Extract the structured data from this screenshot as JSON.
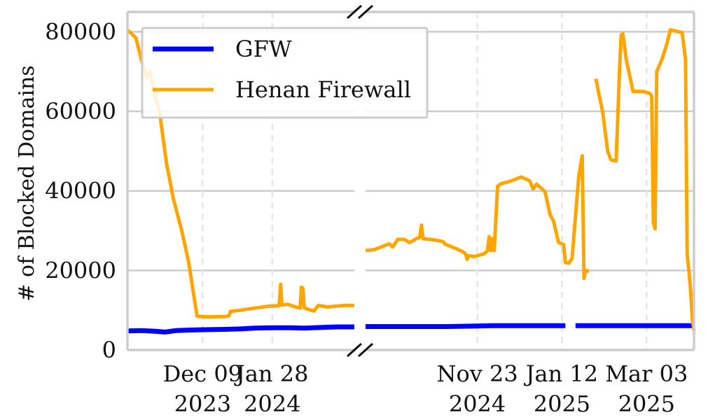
{
  "chart_data": {
    "type": "line",
    "ylabel": "# of Blocked Domains",
    "ylim": [
      0,
      85000
    ],
    "y_ticks": [
      0,
      20000,
      40000,
      60000,
      80000
    ],
    "y_tick_labels": [
      "0",
      "20000",
      "40000",
      "60000",
      "80000"
    ],
    "grid": "horizontal solid, vertical dashed at x ticks",
    "broken_x_axis": true,
    "legend": {
      "placement": "top-left",
      "entries": [
        "GFW",
        "Henan Firewall"
      ]
    },
    "colors": {
      "gfw": "#0000ff",
      "henan": "#ffa500",
      "grid": "#cccccc",
      "vgrid": "#e6e6e6",
      "axis": "#cccccc"
    },
    "panels": [
      {
        "xlim": [
          "2023-10-16",
          "2024-03-27"
        ],
        "x_ticks": [
          {
            "date": "2023-12-09",
            "label_line1": "Dec 09",
            "label_line2": "2023"
          },
          {
            "date": "2024-01-28",
            "label_line1": "Jan 28",
            "label_line2": "2024"
          }
        ]
      },
      {
        "xlim": [
          "2024-09-18",
          "2025-03-31"
        ],
        "x_ticks": [
          {
            "date": "2024-11-23",
            "label_line1": "Nov 23",
            "label_line2": "2024"
          },
          {
            "date": "2025-01-12",
            "label_line1": "Jan 12",
            "label_line2": "2025"
          },
          {
            "date": "2025-03-03",
            "label_line1": "Mar 03",
            "label_line2": "2025"
          }
        ]
      }
    ],
    "series": [
      {
        "name": "GFW",
        "color": "#0000ff",
        "segments": [
          [
            [
              "2023-10-16",
              4800
            ],
            [
              "2023-10-26",
              4900
            ],
            [
              "2023-11-05",
              4700
            ],
            [
              "2023-11-12",
              4500
            ],
            [
              "2023-11-20",
              4900
            ],
            [
              "2023-11-28",
              5000
            ],
            [
              "2023-12-10",
              5100
            ],
            [
              "2023-12-25",
              5200
            ],
            [
              "2024-01-05",
              5300
            ],
            [
              "2024-01-15",
              5500
            ],
            [
              "2024-01-28",
              5600
            ],
            [
              "2024-02-10",
              5600
            ],
            [
              "2024-02-20",
              5500
            ],
            [
              "2024-03-05",
              5700
            ],
            [
              "2024-03-15",
              5800
            ],
            [
              "2024-03-27",
              5800
            ]
          ],
          [
            [
              "2024-09-18",
              5900
            ],
            [
              "2024-10-01",
              5900
            ],
            [
              "2024-10-20",
              5900
            ],
            [
              "2024-11-05",
              5900
            ],
            [
              "2024-11-20",
              6000
            ],
            [
              "2024-12-01",
              6100
            ],
            [
              "2024-12-20",
              6100
            ],
            [
              "2025-01-05",
              6100
            ],
            [
              "2025-01-14",
              6100
            ]
          ],
          [
            [
              "2025-01-20",
              6100
            ],
            [
              "2025-02-01",
              6100
            ],
            [
              "2025-02-20",
              6100
            ],
            [
              "2025-03-10",
              6100
            ],
            [
              "2025-03-31",
              6100
            ]
          ]
        ]
      },
      {
        "name": "Henan Firewall",
        "color": "#ffa500",
        "segments": [
          [
            [
              "2023-10-16",
              80500
            ],
            [
              "2023-10-19",
              79500
            ],
            [
              "2023-10-22",
              78500
            ],
            [
              "2023-10-26",
              73000
            ],
            [
              "2023-10-30",
              68500
            ],
            [
              "2023-11-01",
              70000
            ],
            [
              "2023-11-04",
              65000
            ],
            [
              "2023-11-08",
              60000
            ],
            [
              "2023-11-13",
              47000
            ],
            [
              "2023-11-18",
              38000
            ],
            [
              "2023-11-24",
              30000
            ],
            [
              "2023-11-29",
              22000
            ],
            [
              "2023-12-03",
              13000
            ],
            [
              "2023-12-05",
              8500
            ],
            [
              "2023-12-12",
              8300
            ],
            [
              "2023-12-25",
              8400
            ],
            [
              "2023-12-28",
              8600
            ],
            [
              "2023-12-29",
              9700
            ],
            [
              "2024-01-05",
              10000
            ],
            [
              "2024-01-15",
              10500
            ],
            [
              "2024-01-25",
              11000
            ],
            [
              "2024-01-31",
              11100
            ],
            [
              "2024-02-02",
              11200
            ],
            [
              "2024-02-03",
              16500
            ],
            [
              "2024-02-04",
              11300
            ],
            [
              "2024-02-08",
              11500
            ],
            [
              "2024-02-14",
              10800
            ],
            [
              "2024-02-17",
              10500
            ],
            [
              "2024-02-18",
              15800
            ],
            [
              "2024-02-19",
              15500
            ],
            [
              "2024-02-20",
              10600
            ],
            [
              "2024-02-23",
              10200
            ],
            [
              "2024-02-27",
              9800
            ],
            [
              "2024-03-01",
              11200
            ],
            [
              "2024-03-08",
              10800
            ],
            [
              "2024-03-13",
              11000
            ],
            [
              "2024-03-20",
              11200
            ],
            [
              "2024-03-27",
              11200
            ]
          ],
          [
            [
              "2024-09-18",
              25000
            ],
            [
              "2024-09-23",
              25200
            ],
            [
              "2024-09-29",
              26200
            ],
            [
              "2024-10-02",
              26700
            ],
            [
              "2024-10-04",
              25900
            ],
            [
              "2024-10-07",
              27800
            ],
            [
              "2024-10-11",
              27800
            ],
            [
              "2024-10-14",
              27000
            ],
            [
              "2024-10-18",
              28000
            ],
            [
              "2024-10-20",
              28300
            ],
            [
              "2024-10-21",
              31400
            ],
            [
              "2024-10-22",
              28000
            ],
            [
              "2024-10-30",
              27600
            ],
            [
              "2024-11-03",
              27200
            ],
            [
              "2024-11-04",
              26600
            ],
            [
              "2024-11-11",
              25400
            ],
            [
              "2024-11-14",
              24800
            ],
            [
              "2024-11-16",
              24200
            ],
            [
              "2024-11-17",
              22800
            ],
            [
              "2024-11-18",
              23700
            ],
            [
              "2024-11-21",
              23500
            ],
            [
              "2024-11-23",
              23700
            ],
            [
              "2024-11-27",
              24200
            ],
            [
              "2024-11-29",
              25000
            ],
            [
              "2024-11-30",
              28500
            ],
            [
              "2024-12-01",
              25000
            ],
            [
              "2024-12-02",
              28000
            ],
            [
              "2024-12-03",
              25000
            ],
            [
              "2024-12-05",
              41200
            ],
            [
              "2024-12-07",
              41800
            ],
            [
              "2024-12-13",
              42500
            ],
            [
              "2024-12-16",
              43000
            ],
            [
              "2024-12-19",
              43500
            ],
            [
              "2024-12-24",
              42500
            ],
            [
              "2024-12-26",
              40500
            ],
            [
              "2024-12-28",
              41700
            ],
            [
              "2025-01-02",
              39800
            ],
            [
              "2025-01-05",
              34000
            ],
            [
              "2025-01-07",
              32500
            ],
            [
              "2025-01-10",
              27000
            ],
            [
              "2025-01-13",
              26500
            ],
            [
              "2025-01-14",
              22000
            ],
            [
              "2025-01-16",
              21800
            ],
            [
              "2025-01-18",
              23000
            ],
            [
              "2025-01-22",
              44000
            ],
            [
              "2025-01-24",
              48800
            ],
            [
              "2025-01-25",
              18000
            ],
            [
              "2025-01-26",
              20000
            ],
            [
              "2025-01-28",
              19800
            ]
          ],
          [
            [
              "2025-02-01",
              68200
            ],
            [
              "2025-02-03",
              64000
            ],
            [
              "2025-02-05",
              60000
            ],
            [
              "2025-02-08",
              50000
            ],
            [
              "2025-02-10",
              47800
            ],
            [
              "2025-02-13",
              47500
            ],
            [
              "2025-02-15",
              70000
            ],
            [
              "2025-02-16",
              79200
            ],
            [
              "2025-02-17",
              79500
            ],
            [
              "2025-02-19",
              73000
            ],
            [
              "2025-02-23",
              65000
            ],
            [
              "2025-03-01",
              65000
            ],
            [
              "2025-03-05",
              64500
            ],
            [
              "2025-03-06",
              63800
            ],
            [
              "2025-03-07",
              32000
            ],
            [
              "2025-03-08",
              30500
            ],
            [
              "2025-03-09",
              70000
            ],
            [
              "2025-03-12",
              73000
            ],
            [
              "2025-03-15",
              77000
            ],
            [
              "2025-03-17",
              80500
            ],
            [
              "2025-03-22",
              80000
            ],
            [
              "2025-03-24",
              79800
            ],
            [
              "2025-03-26",
              73000
            ],
            [
              "2025-03-27",
              24000
            ],
            [
              "2025-03-28",
              20000
            ],
            [
              "2025-03-29",
              15000
            ],
            [
              "2025-03-30",
              8000
            ],
            [
              "2025-03-31",
              4800
            ]
          ]
        ]
      }
    ]
  }
}
